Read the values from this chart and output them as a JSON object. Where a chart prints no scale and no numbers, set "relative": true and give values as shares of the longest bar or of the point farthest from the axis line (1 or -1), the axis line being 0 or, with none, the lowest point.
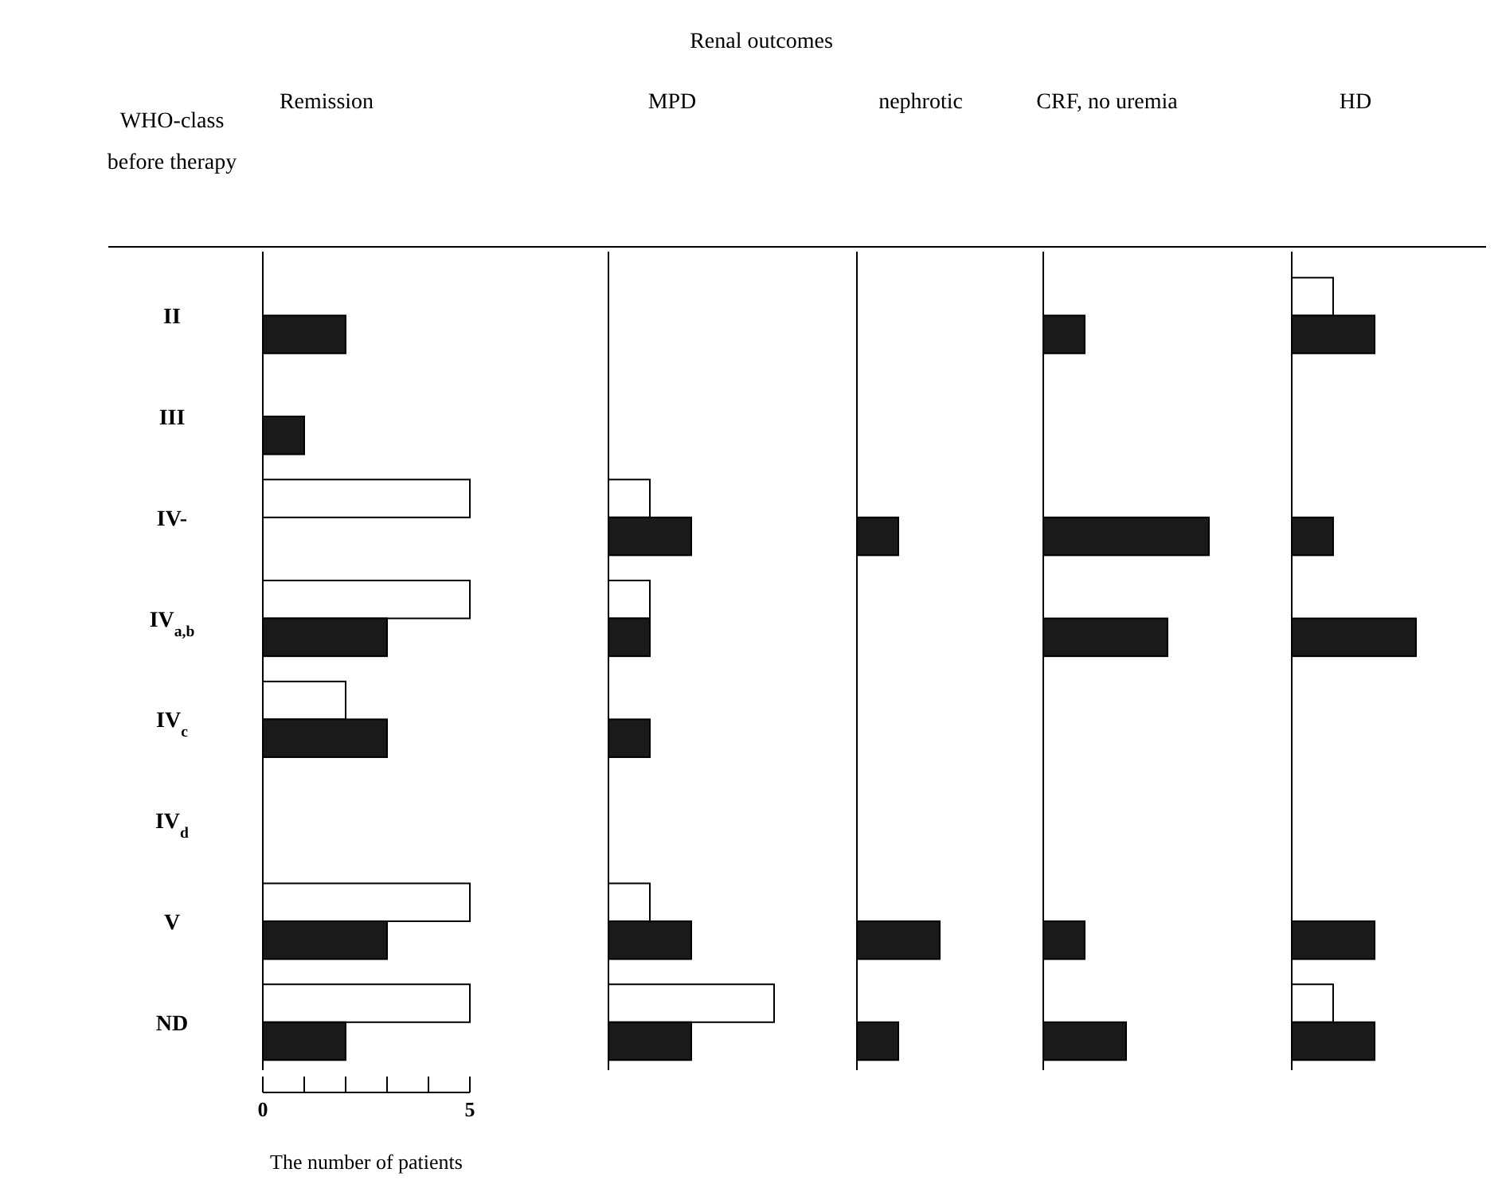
{
  "chart_data": [
    {
      "type": "bar",
      "orientation": "horizontal",
      "title": "Remission",
      "ylabel": "WHO-class before therapy",
      "xlabel": "The number of patients",
      "annotations": [
        "Renal outcomes"
      ],
      "categories": [
        "II",
        "III",
        "IV-",
        "IV$_{a,b}$",
        "IV$_{c}$",
        "IV$_{d}$",
        "V",
        "ND"
      ],
      "xlim": [
        0,
        5
      ],
      "xticks": [
        0,
        {
          "value": 1,
          "label": null
        },
        {
          "value": 2,
          "label": null
        },
        {
          "value": 3,
          "label": null
        },
        {
          "value": 4,
          "label": null
        },
        5
      ],
      "series": [
        {
          "color": "#ffffff",
          "values": [
            null,
            null,
            5,
            5,
            2,
            null,
            5,
            5
          ]
        },
        {
          "color": "#1a1a1a",
          "values": [
            2,
            1,
            null,
            3,
            3,
            null,
            3,
            2
          ]
        }
      ]
    },
    {
      "type": "bar",
      "orientation": "horizontal",
      "relative": true,
      "title": "MPD",
      "categories": [
        null,
        null,
        null,
        null,
        null,
        null,
        null,
        null
      ],
      "series": [
        {
          "color": "#ffffff",
          "values": [
            null,
            null,
            0.25,
            0.25,
            null,
            null,
            0.25,
            1
          ]
        },
        {
          "color": "#1a1a1a",
          "values": [
            null,
            null,
            0.5,
            0.25,
            0.25,
            null,
            0.5,
            0.5
          ]
        }
      ]
    },
    {
      "type": "bar",
      "orientation": "horizontal",
      "relative": true,
      "title": "nephrotic",
      "categories": [
        null,
        null,
        null,
        null,
        null,
        null,
        null,
        null
      ],
      "series": [
        {
          "color": "#1a1a1a",
          "values": [
            null,
            null,
            0.5,
            null,
            null,
            null,
            1,
            0.5
          ]
        }
      ]
    },
    {
      "type": "bar",
      "orientation": "horizontal",
      "relative": true,
      "title": "CRF, no uremia",
      "categories": [
        null,
        null,
        null,
        null,
        null,
        null,
        null,
        null
      ],
      "series": [
        {
          "color": "#1a1a1a",
          "values": [
            0.25,
            null,
            1,
            0.75,
            null,
            null,
            0.25,
            0.5
          ]
        }
      ]
    },
    {
      "type": "bar",
      "orientation": "horizontal",
      "relative": true,
      "title": "HD",
      "categories": [
        null,
        null,
        null,
        null,
        null,
        null,
        null,
        null
      ],
      "series": [
        {
          "color": "#ffffff",
          "values": [
            0.333,
            null,
            null,
            null,
            null,
            null,
            null,
            0.333
          ]
        },
        {
          "color": "#1a1a1a",
          "values": [
            0.667,
            null,
            0.333,
            1,
            null,
            null,
            0.667,
            0.667
          ]
        }
      ]
    }
  ]
}
